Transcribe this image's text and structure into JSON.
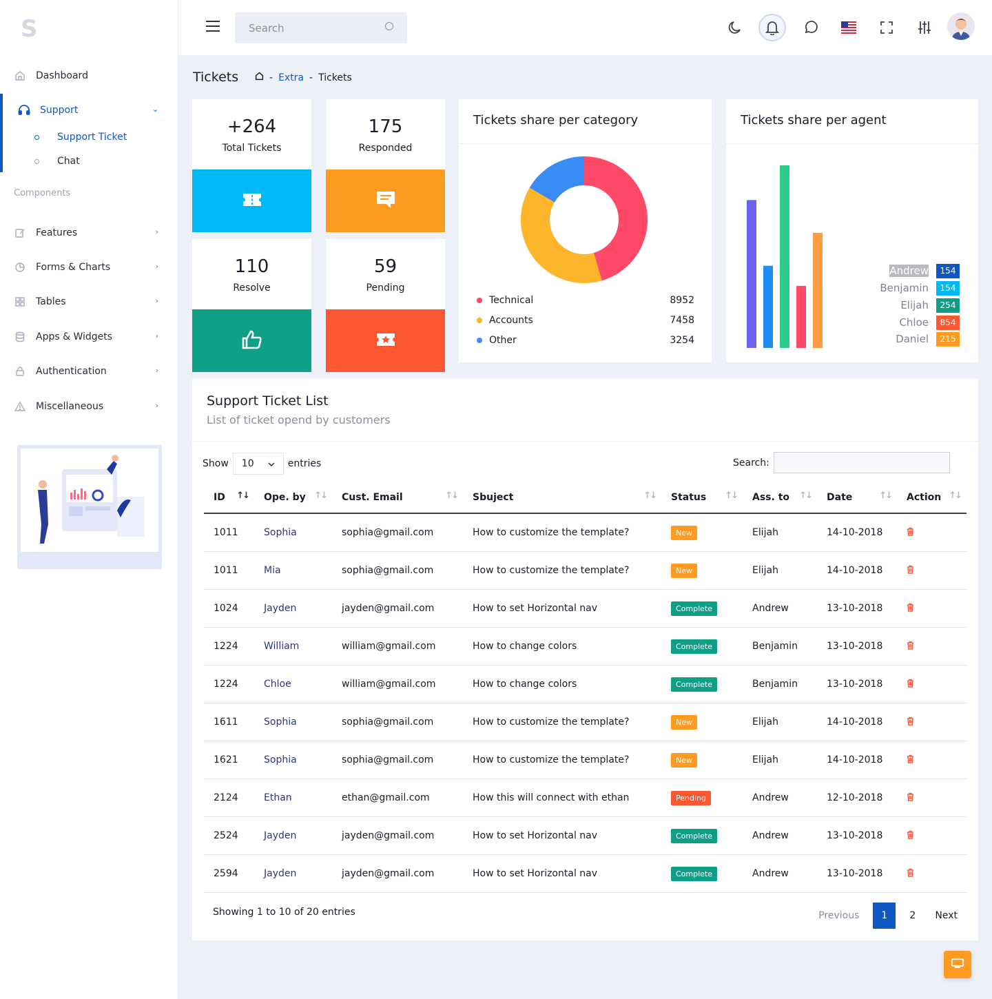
{
  "search": {
    "placeholder": "Search"
  },
  "sidebar": {
    "items": [
      {
        "label": "Dashboard"
      },
      {
        "label": "Support"
      },
      {
        "label": "Features"
      },
      {
        "label": "Forms & Charts"
      },
      {
        "label": "Tables"
      },
      {
        "label": "Apps & Widgets"
      },
      {
        "label": "Authentication"
      },
      {
        "label": "Miscellaneous"
      }
    ],
    "sub_items": [
      {
        "label": "Support Ticket"
      },
      {
        "label": "Chat"
      }
    ],
    "section_label": "Components"
  },
  "page": {
    "title": "Tickets",
    "breadcrumb": [
      "Extra",
      "Tickets"
    ]
  },
  "stats": [
    {
      "value": "+264",
      "label": "Total Tickets",
      "color": "#00b8f4",
      "icon": "ticket-icon"
    },
    {
      "value": "175",
      "label": "Responded",
      "color": "#ff9b21",
      "icon": "message-icon"
    },
    {
      "value": "110",
      "label": "Resolve",
      "color": "#0ea086",
      "icon": "thumbs-up-icon"
    },
    {
      "value": "59",
      "label": "Pending",
      "color": "#fb5730",
      "icon": "star-ticket-icon"
    }
  ],
  "category_card": {
    "title": "Tickets share per category",
    "legend": [
      {
        "label": "Technical",
        "value": "8952",
        "color": "#fe4a68"
      },
      {
        "label": "Accounts",
        "value": "7458",
        "color": "#fdb52c"
      },
      {
        "label": "Other",
        "value": "3254",
        "color": "#3b8df6"
      }
    ]
  },
  "agent_card": {
    "title": "Tickets share per agent",
    "agents": [
      {
        "name": "Andrew",
        "value": "154",
        "color": "#0f58c4"
      },
      {
        "name": "Benjamin",
        "value": "154",
        "color": "#00b8f4"
      },
      {
        "name": "Elijah",
        "value": "254",
        "color": "#0ea086"
      },
      {
        "name": "Chloe",
        "value": "854",
        "color": "#fb5730"
      },
      {
        "name": "Daniel",
        "value": "215",
        "color": "#ff9b21"
      }
    ]
  },
  "chart_data": [
    {
      "type": "pie",
      "categories": [
        "Technical",
        "Accounts",
        "Other"
      ],
      "values": [
        8952,
        7458,
        3254
      ],
      "colors": [
        "#fe4a68",
        "#fdb52c",
        "#3b8df6"
      ],
      "donut": true
    },
    {
      "type": "bar",
      "bar_values": [
        81,
        45,
        100,
        34,
        63
      ],
      "colors": [
        "#6c63f0",
        "#1f8ef0",
        "#2ecc8a",
        "#fe4a68",
        "#ff9b45"
      ],
      "grid": false
    }
  ],
  "table_card": {
    "title": "Support Ticket List",
    "subtitle": "List of ticket opend by customers",
    "show_label": "Show",
    "entries_label": "entries",
    "page_size": "10",
    "search_label": "Search:",
    "columns": [
      "ID",
      "Ope. by",
      "Cust. Email",
      "Sbuject",
      "Status",
      "Ass. to",
      "Date",
      "Action"
    ],
    "rows": [
      {
        "id": "1011",
        "by": "Sophia",
        "email": "sophia@gmail.com",
        "subject": "How to customize the template?",
        "status": "New",
        "status_color": "#ff9b21",
        "to": "Elijah",
        "date": "14-10-2018"
      },
      {
        "id": "1011",
        "by": "Mia",
        "email": "sophia@gmail.com",
        "subject": "How to customize the template?",
        "status": "New",
        "status_color": "#ff9b21",
        "to": "Elijah",
        "date": "14-10-2018"
      },
      {
        "id": "1024",
        "by": "Jayden",
        "email": "jayden@gmail.com",
        "subject": "How to set Horizontal nav",
        "status": "Complete",
        "status_color": "#0ea086",
        "to": "Andrew",
        "date": "13-10-2018"
      },
      {
        "id": "1224",
        "by": "William",
        "email": "william@gmail.com",
        "subject": "How to change colors",
        "status": "Complete",
        "status_color": "#0ea086",
        "to": "Benjamin",
        "date": "13-10-2018"
      },
      {
        "id": "1224",
        "by": "Chloe",
        "email": "william@gmail.com",
        "subject": "How to change colors",
        "status": "Complete",
        "status_color": "#0ea086",
        "to": "Benjamin",
        "date": "13-10-2018"
      },
      {
        "id": "1611",
        "by": "Sophia",
        "email": "sophia@gmail.com",
        "subject": "How to customize the template?",
        "status": "New",
        "status_color": "#ff9b21",
        "to": "Elijah",
        "date": "14-10-2018"
      },
      {
        "id": "1621",
        "by": "Sophia",
        "email": "sophia@gmail.com",
        "subject": "How to customize the template?",
        "status": "New",
        "status_color": "#ff9b21",
        "to": "Elijah",
        "date": "14-10-2018"
      },
      {
        "id": "2124",
        "by": "Ethan",
        "email": "ethan@gmail.com",
        "subject": "How this will connect with ethan",
        "status": "Pending",
        "status_color": "#fb5730",
        "to": "Andrew",
        "date": "12-10-2018"
      },
      {
        "id": "2524",
        "by": "Jayden",
        "email": "jayden@gmail.com",
        "subject": "How to set Horizontal nav",
        "status": "Complete",
        "status_color": "#0ea086",
        "to": "Andrew",
        "date": "13-10-2018"
      },
      {
        "id": "2594",
        "by": "Jayden",
        "email": "jayden@gmail.com",
        "subject": "How to set Horizontal nav",
        "status": "Complete",
        "status_color": "#0ea086",
        "to": "Andrew",
        "date": "13-10-2018"
      }
    ],
    "showing": "Showing 1 to 10 of 20 entries",
    "pager": {
      "previous": "Previous",
      "pages": [
        "1",
        "2"
      ],
      "next": "Next"
    }
  }
}
